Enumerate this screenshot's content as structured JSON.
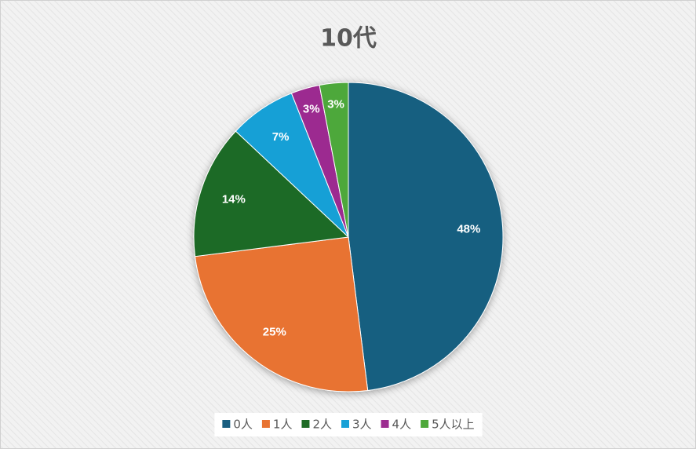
{
  "chart_data": {
    "type": "pie",
    "title": "10代",
    "categories": [
      "0人",
      "1人",
      "2人",
      "3人",
      "4人",
      "5人以上"
    ],
    "values": [
      48,
      25,
      14,
      7,
      3,
      3
    ],
    "value_labels": [
      "48%",
      "25%",
      "14%",
      "7%",
      "3%",
      "3%"
    ],
    "colors": [
      "#195e80",
      "#e87332",
      "#1e6b25",
      "#17a0d6",
      "#9c2c90",
      "#4ea83a"
    ],
    "legend": "bottom"
  }
}
